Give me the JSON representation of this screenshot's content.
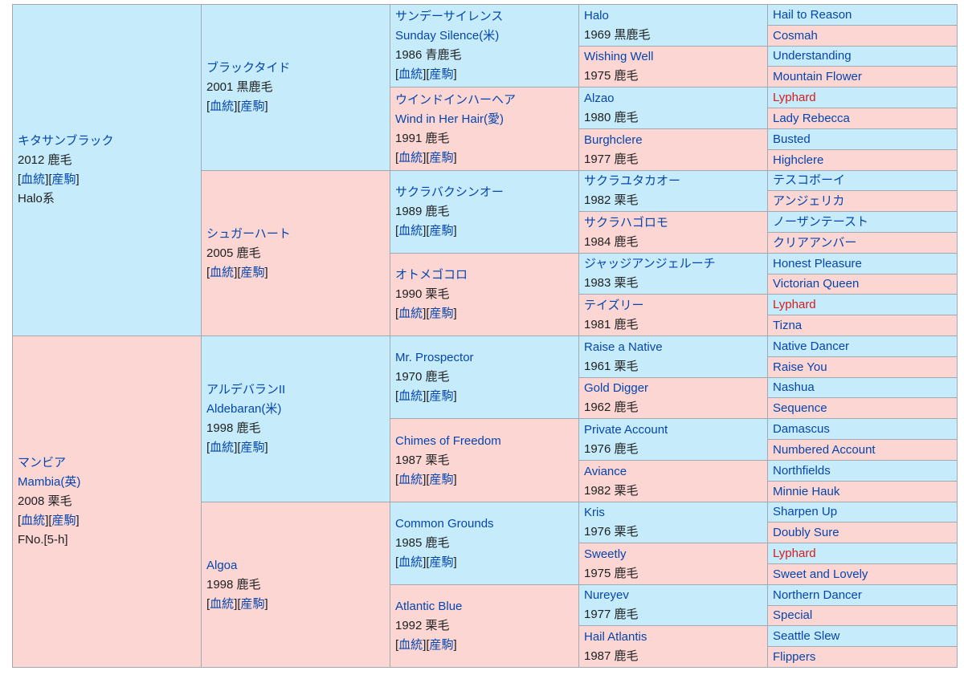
{
  "pedigree": {
    "gen1": [
      {
        "name": "キタサンブラック",
        "born": "2012 鹿毛",
        "links": [
          "血統",
          "産駒"
        ],
        "note": "Halo系",
        "sex": "m"
      },
      {
        "name": "マンビア",
        "name_en": "Mambia(英)",
        "born": "2008 栗毛",
        "links": [
          "血統",
          "産駒"
        ],
        "note": "FNo.[5-h]",
        "sex": "f"
      }
    ],
    "gen2": [
      {
        "name": "ブラックタイド",
        "born": "2001 黒鹿毛",
        "links": [
          "血統",
          "産駒"
        ],
        "sex": "m"
      },
      {
        "name": "シュガーハート",
        "born": "2005 鹿毛",
        "links": [
          "血統",
          "産駒"
        ],
        "sex": "f"
      },
      {
        "name": "アルデバランII",
        "name_en": "Aldebaran(米)",
        "born": "1998 鹿毛",
        "links": [
          "血統",
          "産駒"
        ],
        "sex": "m"
      },
      {
        "name": "Algoa",
        "born": "1998 鹿毛",
        "links": [
          "血統",
          "産駒"
        ],
        "sex": "f"
      }
    ],
    "gen3": [
      {
        "name": "サンデーサイレンス",
        "name_en": "Sunday Silence(米)",
        "born": "1986 青鹿毛",
        "links": [
          "血統",
          "産駒"
        ],
        "sex": "m"
      },
      {
        "name": "ウインドインハーヘア",
        "name_en": "Wind in Her Hair(愛)",
        "born": "1991 鹿毛",
        "links": [
          "血統",
          "産駒"
        ],
        "sex": "f"
      },
      {
        "name": "サクラバクシンオー",
        "born": "1989 鹿毛",
        "links": [
          "血統",
          "産駒"
        ],
        "sex": "m"
      },
      {
        "name": "オトメゴコロ",
        "born": "1990 栗毛",
        "links": [
          "血統",
          "産駒"
        ],
        "sex": "f"
      },
      {
        "name": "Mr. Prospector",
        "born": "1970 鹿毛",
        "links": [
          "血統",
          "産駒"
        ],
        "sex": "m"
      },
      {
        "name": "Chimes of Freedom",
        "born": "1987 栗毛",
        "links": [
          "血統",
          "産駒"
        ],
        "sex": "f"
      },
      {
        "name": "Common Grounds",
        "born": "1985 鹿毛",
        "links": [
          "血統",
          "産駒"
        ],
        "sex": "m"
      },
      {
        "name": "Atlantic Blue",
        "born": "1992 栗毛",
        "links": [
          "血統",
          "産駒"
        ],
        "sex": "f"
      }
    ],
    "gen4": [
      {
        "name": "Halo",
        "born": "1969 黒鹿毛",
        "sex": "m"
      },
      {
        "name": "Wishing Well",
        "born": "1975 鹿毛",
        "sex": "f"
      },
      {
        "name": "Alzao",
        "born": "1980 鹿毛",
        "sex": "m"
      },
      {
        "name": "Burghclere",
        "born": "1977 鹿毛",
        "sex": "f"
      },
      {
        "name": "サクラユタカオー",
        "born": "1982 栗毛",
        "sex": "m"
      },
      {
        "name": "サクラハゴロモ",
        "born": "1984 鹿毛",
        "sex": "f"
      },
      {
        "name": "ジャッジアンジェルーチ",
        "born": "1983 栗毛",
        "sex": "m"
      },
      {
        "name": "テイズリー",
        "born": "1981 鹿毛",
        "sex": "f"
      },
      {
        "name": "Raise a Native",
        "born": "1961 栗毛",
        "sex": "m"
      },
      {
        "name": "Gold Digger",
        "born": "1962 鹿毛",
        "sex": "f"
      },
      {
        "name": "Private Account",
        "born": "1976 鹿毛",
        "sex": "m"
      },
      {
        "name": "Aviance",
        "born": "1982 栗毛",
        "sex": "f"
      },
      {
        "name": "Kris",
        "born": "1976 栗毛",
        "sex": "m"
      },
      {
        "name": "Sweetly",
        "born": "1975 鹿毛",
        "sex": "f"
      },
      {
        "name": "Nureyev",
        "born": "1977 鹿毛",
        "sex": "m"
      },
      {
        "name": "Hail Atlantis",
        "born": "1987 鹿毛",
        "sex": "f"
      }
    ],
    "gen5": [
      {
        "name": "Hail to Reason",
        "sex": "m"
      },
      {
        "name": "Cosmah",
        "sex": "f"
      },
      {
        "name": "Understanding",
        "sex": "m"
      },
      {
        "name": "Mountain Flower",
        "sex": "f"
      },
      {
        "name": "Lyphard",
        "sex": "m",
        "highlight": true
      },
      {
        "name": "Lady Rebecca",
        "sex": "f"
      },
      {
        "name": "Busted",
        "sex": "m"
      },
      {
        "name": "Highclere",
        "sex": "f"
      },
      {
        "name": "テスコボーイ",
        "sex": "m"
      },
      {
        "name": "アンジェリカ",
        "sex": "f"
      },
      {
        "name": "ノーザンテースト",
        "sex": "m"
      },
      {
        "name": "クリアアンバー",
        "sex": "f"
      },
      {
        "name": "Honest Pleasure",
        "sex": "m"
      },
      {
        "name": "Victorian Queen",
        "sex": "f"
      },
      {
        "name": "Lyphard",
        "sex": "m",
        "highlight": true
      },
      {
        "name": "Tizna",
        "sex": "f"
      },
      {
        "name": "Native Dancer",
        "sex": "m"
      },
      {
        "name": "Raise You",
        "sex": "f"
      },
      {
        "name": "Nashua",
        "sex": "m"
      },
      {
        "name": "Sequence",
        "sex": "f"
      },
      {
        "name": "Damascus",
        "sex": "m"
      },
      {
        "name": "Numbered Account",
        "sex": "f"
      },
      {
        "name": "Northfields",
        "sex": "m"
      },
      {
        "name": "Minnie Hauk",
        "sex": "f"
      },
      {
        "name": "Sharpen Up",
        "sex": "m"
      },
      {
        "name": "Doubly Sure",
        "sex": "f"
      },
      {
        "name": "Lyphard",
        "sex": "m",
        "highlight": true
      },
      {
        "name": "Sweet and Lovely",
        "sex": "f"
      },
      {
        "name": "Northern Dancer",
        "sex": "m"
      },
      {
        "name": "Special",
        "sex": "f"
      },
      {
        "name": "Seattle Slew",
        "sex": "m"
      },
      {
        "name": "Flippers",
        "sex": "f"
      }
    ]
  },
  "colors": {
    "male_bg": "#c6ecfb",
    "female_bg": "#fbd6d3",
    "link": "#0645ad",
    "highlight": "#d81b1b",
    "border": "#a2a9b1"
  }
}
